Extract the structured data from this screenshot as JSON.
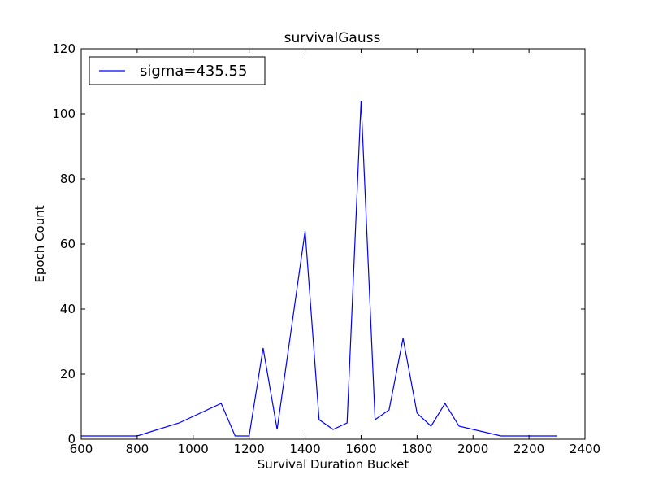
{
  "chart_data": {
    "type": "line",
    "title": "survivalGauss",
    "xlabel": "Survival Duration Bucket",
    "ylabel": "Epoch Count",
    "xlim": [
      600,
      2400
    ],
    "ylim": [
      0,
      120
    ],
    "xticks": [
      600,
      800,
      1000,
      1200,
      1400,
      1600,
      1800,
      2000,
      2200,
      2400
    ],
    "yticks": [
      0,
      20,
      40,
      60,
      80,
      100,
      120
    ],
    "grid": false,
    "legend_position": "top-left",
    "series": [
      {
        "name": "sigma=435.55",
        "color": "#0000ff",
        "x": [
          600,
          650,
          700,
          750,
          800,
          950,
          1100,
          1150,
          1200,
          1250,
          1300,
          1400,
          1450,
          1500,
          1550,
          1600,
          1650,
          1700,
          1750,
          1800,
          1850,
          1900,
          1950,
          2100,
          2300
        ],
        "y": [
          1,
          1,
          1,
          1,
          1,
          5,
          11,
          1,
          1,
          28,
          3,
          64,
          6,
          3,
          5,
          104,
          6,
          9,
          31,
          8,
          4,
          11,
          4,
          1,
          1
        ]
      }
    ]
  }
}
